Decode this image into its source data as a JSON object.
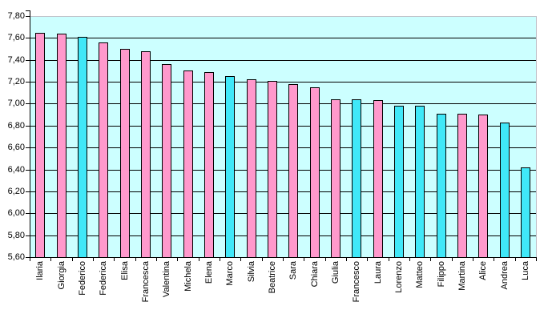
{
  "chart_data": {
    "type": "bar",
    "title": "",
    "xlabel": "",
    "ylabel": "",
    "categories": [
      "Ilaria",
      "Giorgia",
      "Federico",
      "Federica",
      "Elisa",
      "Francesca",
      "Valentina",
      "Michela",
      "Elena",
      "Marco",
      "Silvia",
      "Beatrice",
      "Sara",
      "Chiara",
      "Giulia",
      "Francesco",
      "Laura",
      "Lorenzo",
      "Matteo",
      "Filippo",
      "Martina",
      "Alice",
      "Andrea",
      "Luca"
    ],
    "values": [
      7.65,
      7.64,
      7.61,
      7.56,
      7.5,
      7.48,
      7.36,
      7.3,
      7.29,
      7.25,
      7.22,
      7.21,
      7.18,
      7.15,
      7.04,
      7.04,
      7.03,
      6.98,
      6.98,
      6.91,
      6.91,
      6.9,
      6.83,
      6.42
    ],
    "bar_color_keys": [
      "pink",
      "pink",
      "cyan",
      "pink",
      "pink",
      "pink",
      "pink",
      "pink",
      "pink",
      "cyan",
      "pink",
      "pink",
      "pink",
      "pink",
      "pink",
      "cyan",
      "pink",
      "cyan",
      "cyan",
      "cyan",
      "pink",
      "pink",
      "cyan",
      "cyan"
    ],
    "ylim": [
      5.6,
      7.8
    ],
    "ytick_step": 0.2,
    "ytick_labels": [
      "7,80",
      "7,60",
      "7,40",
      "7,20",
      "7,00",
      "6,80",
      "6,60",
      "6,40",
      "6,20",
      "6,00",
      "5,80",
      "5,60"
    ],
    "decimal_separator": ",",
    "grid": true,
    "legend": "none",
    "x_label_rotation_deg": 90,
    "colors": {
      "pink": "#FF99CC",
      "cyan": "#40E8F8",
      "plot_bg": "#CCFFFF",
      "gridline": "#000000",
      "axis": "#000000",
      "plot_border": "#C0C0C8",
      "text": "#000000",
      "background": "#FFFFFF"
    }
  }
}
